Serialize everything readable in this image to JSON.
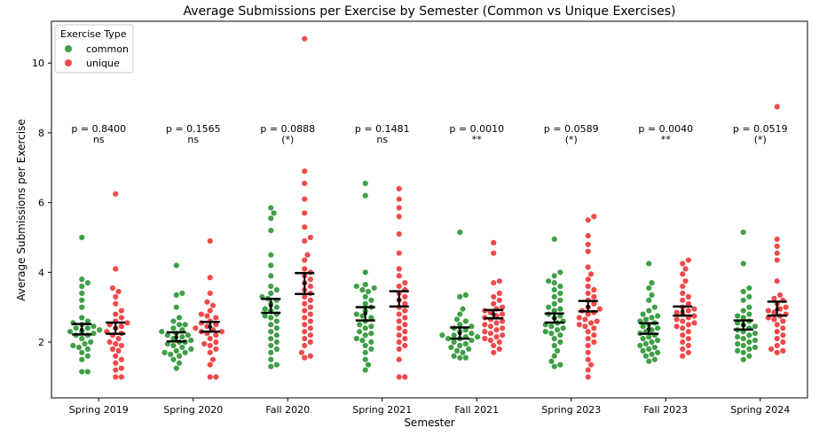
{
  "chart_data": {
    "type": "scatter",
    "subtype": "swarm-with-mean-ci",
    "title": "Average Submissions per Exercise by Semester (Common vs Unique Exercises)",
    "xlabel": "Semester",
    "ylabel": "Average Submissions per Exercise",
    "ylim": [
      0.4,
      11.2
    ],
    "yticks": [
      2,
      4,
      6,
      8,
      10
    ],
    "grid": false,
    "legend": {
      "title": "Exercise Type",
      "placement": "top-left",
      "entries": [
        {
          "label": "common",
          "color": "#3f9f47"
        },
        {
          "label": "unique",
          "color": "#f04a4c"
        }
      ]
    },
    "categories": [
      "Spring 2019",
      "Spring 2020",
      "Fall 2020",
      "Spring 2021",
      "Fall 2021",
      "Spring 2023",
      "Fall 2023",
      "Spring 2024"
    ],
    "annotations": [
      {
        "p": "p = 0.8400",
        "sig": "ns"
      },
      {
        "p": "p = 0.1565",
        "sig": "ns"
      },
      {
        "p": "p = 0.0888",
        "sig": "(*)"
      },
      {
        "p": "p = 0.1481",
        "sig": "ns"
      },
      {
        "p": "p = 0.0010",
        "sig": "**"
      },
      {
        "p": "p = 0.0589",
        "sig": "(*)"
      },
      {
        "p": "p = 0.0040",
        "sig": "**"
      },
      {
        "p": "p = 0.0519",
        "sig": "(*)"
      }
    ],
    "series": [
      {
        "name": "common",
        "color": "#3f9f47",
        "mean": [
          2.36,
          2.14,
          3.04,
          2.82,
          2.25,
          2.68,
          2.38,
          2.48
        ],
        "ci_low": [
          2.22,
          2.02,
          2.84,
          2.62,
          2.1,
          2.56,
          2.24,
          2.36
        ],
        "ci_high": [
          2.52,
          2.28,
          3.24,
          3.0,
          2.42,
          2.82,
          2.54,
          2.62
        ],
        "points": [
          [
            5.0,
            3.8,
            3.7,
            3.6,
            3.4,
            3.2,
            3.0,
            2.7,
            2.6,
            2.55,
            2.5,
            2.45,
            2.4,
            2.4,
            2.35,
            2.3,
            2.3,
            2.25,
            2.2,
            2.2,
            2.1,
            2.0,
            1.95,
            1.9,
            1.85,
            1.8,
            1.7,
            1.6,
            1.5,
            1.15,
            1.15
          ],
          [
            4.2,
            3.4,
            3.35,
            3.0,
            2.7,
            2.6,
            2.5,
            2.5,
            2.4,
            2.35,
            2.3,
            2.25,
            2.2,
            2.2,
            2.15,
            2.1,
            2.05,
            2.0,
            2.0,
            1.95,
            1.9,
            1.85,
            1.8,
            1.75,
            1.7,
            1.7,
            1.65,
            1.6,
            1.5,
            1.4,
            1.25
          ],
          [
            5.85,
            5.7,
            5.55,
            5.2,
            4.5,
            4.2,
            3.9,
            3.6,
            3.5,
            3.4,
            3.3,
            3.25,
            3.2,
            3.1,
            3.0,
            2.95,
            2.9,
            2.8,
            2.75,
            2.7,
            2.6,
            2.5,
            2.4,
            2.3,
            2.2,
            2.1,
            2.0,
            1.9,
            1.8,
            1.7,
            1.5,
            1.35,
            1.3
          ],
          [
            6.55,
            6.2,
            4.0,
            3.65,
            3.6,
            3.55,
            3.5,
            3.45,
            3.3,
            3.2,
            3.1,
            3.0,
            2.9,
            2.8,
            2.75,
            2.7,
            2.6,
            2.5,
            2.45,
            2.4,
            2.3,
            2.25,
            2.2,
            2.1,
            2.05,
            2.0,
            1.9,
            1.8,
            1.7,
            1.5,
            1.35,
            1.2
          ],
          [
            5.15,
            3.35,
            3.3,
            2.95,
            2.8,
            2.65,
            2.6,
            2.5,
            2.45,
            2.4,
            2.35,
            2.3,
            2.25,
            2.2,
            2.2,
            2.15,
            2.15,
            2.1,
            2.1,
            2.05,
            2.0,
            1.95,
            1.9,
            1.85,
            1.8,
            1.75,
            1.7,
            1.6,
            1.55,
            1.55
          ],
          [
            4.95,
            4.0,
            3.9,
            3.75,
            3.7,
            3.6,
            3.5,
            3.4,
            3.3,
            3.2,
            3.1,
            3.0,
            2.95,
            2.9,
            2.8,
            2.75,
            2.7,
            2.6,
            2.55,
            2.5,
            2.45,
            2.4,
            2.35,
            2.3,
            2.25,
            2.2,
            2.1,
            2.0,
            1.9,
            1.75,
            1.6,
            1.45,
            1.35,
            1.3
          ],
          [
            4.25,
            3.7,
            3.55,
            3.35,
            3.2,
            3.0,
            2.9,
            2.8,
            2.75,
            2.7,
            2.65,
            2.6,
            2.55,
            2.5,
            2.45,
            2.4,
            2.35,
            2.3,
            2.25,
            2.2,
            2.15,
            2.1,
            2.05,
            2.0,
            1.95,
            1.9,
            1.85,
            1.8,
            1.75,
            1.7,
            1.65,
            1.6,
            1.5,
            1.45
          ],
          [
            5.15,
            4.25,
            3.55,
            3.45,
            3.3,
            3.2,
            3.0,
            2.9,
            2.8,
            2.75,
            2.7,
            2.6,
            2.55,
            2.5,
            2.45,
            2.4,
            2.35,
            2.3,
            2.25,
            2.2,
            2.15,
            2.1,
            2.05,
            2.0,
            1.95,
            1.9,
            1.85,
            1.8,
            1.75,
            1.7,
            1.6,
            1.5
          ]
        ]
      },
      {
        "name": "unique",
        "color": "#f04a4c",
        "mean": [
          2.4,
          2.44,
          3.68,
          3.22,
          2.8,
          3.02,
          2.88,
          2.94
        ],
        "ci_low": [
          2.24,
          2.3,
          3.38,
          3.02,
          2.68,
          2.88,
          2.76,
          2.76
        ],
        "ci_high": [
          2.56,
          2.58,
          3.98,
          3.46,
          2.92,
          3.18,
          3.02,
          3.16
        ],
        "points": [
          [
            6.25,
            4.1,
            3.55,
            3.45,
            3.3,
            3.1,
            2.9,
            2.8,
            2.7,
            2.6,
            2.55,
            2.5,
            2.45,
            2.4,
            2.3,
            2.25,
            2.2,
            2.1,
            2.0,
            1.95,
            1.9,
            1.8,
            1.75,
            1.6,
            1.5,
            1.4,
            1.25,
            1.2,
            1.0,
            1.0
          ],
          [
            4.9,
            3.85,
            3.4,
            3.15,
            3.05,
            2.9,
            2.8,
            2.75,
            2.7,
            2.6,
            2.55,
            2.5,
            2.45,
            2.4,
            2.35,
            2.3,
            2.3,
            2.25,
            2.2,
            2.1,
            2.0,
            1.95,
            1.9,
            1.8,
            1.7,
            1.5,
            1.35,
            1.0,
            1.0
          ],
          [
            10.7,
            6.9,
            6.55,
            6.1,
            5.7,
            5.3,
            5.0,
            4.9,
            4.5,
            4.35,
            4.1,
            4.0,
            3.9,
            3.8,
            3.7,
            3.6,
            3.5,
            3.4,
            3.3,
            3.2,
            3.1,
            3.0,
            2.9,
            2.8,
            2.7,
            2.6,
            2.5,
            2.4,
            2.3,
            2.2,
            2.1,
            2.0,
            1.9,
            1.7,
            1.6,
            1.55
          ],
          [
            6.4,
            6.1,
            5.85,
            5.6,
            5.1,
            4.55,
            4.1,
            3.9,
            3.7,
            3.6,
            3.5,
            3.4,
            3.3,
            3.2,
            3.1,
            3.0,
            2.9,
            2.8,
            2.7,
            2.6,
            2.5,
            2.4,
            2.3,
            2.2,
            2.1,
            2.0,
            1.9,
            1.8,
            1.5,
            1.0,
            1.0
          ],
          [
            4.85,
            4.55,
            3.75,
            3.7,
            3.4,
            3.3,
            3.2,
            3.1,
            3.0,
            2.95,
            2.9,
            2.85,
            2.8,
            2.75,
            2.7,
            2.65,
            2.6,
            2.55,
            2.5,
            2.45,
            2.4,
            2.35,
            2.3,
            2.25,
            2.2,
            2.15,
            2.1,
            2.05,
            2.0,
            1.9,
            1.8,
            1.7
          ],
          [
            5.6,
            5.5,
            5.05,
            4.8,
            4.6,
            4.15,
            3.95,
            3.8,
            3.6,
            3.5,
            3.4,
            3.3,
            3.2,
            3.1,
            3.0,
            2.95,
            2.9,
            2.85,
            2.8,
            2.7,
            2.65,
            2.6,
            2.55,
            2.5,
            2.45,
            2.4,
            2.3,
            2.2,
            2.1,
            2.0,
            1.9,
            1.7,
            1.5,
            1.35,
            1.2,
            1.0
          ],
          [
            4.35,
            4.25,
            4.1,
            3.95,
            3.75,
            3.6,
            3.4,
            3.3,
            3.2,
            3.1,
            3.0,
            2.95,
            2.9,
            2.85,
            2.8,
            2.75,
            2.7,
            2.65,
            2.6,
            2.55,
            2.5,
            2.45,
            2.4,
            2.3,
            2.2,
            2.1,
            2.0,
            1.9,
            1.8,
            1.7,
            1.6
          ],
          [
            8.75,
            4.95,
            4.75,
            4.55,
            4.35,
            3.75,
            3.35,
            3.25,
            3.2,
            3.1,
            3.0,
            2.95,
            2.9,
            2.85,
            2.8,
            2.75,
            2.7,
            2.65,
            2.6,
            2.5,
            2.4,
            2.3,
            2.2,
            2.1,
            2.0,
            1.9,
            1.8,
            1.75,
            1.7
          ]
        ]
      }
    ]
  }
}
